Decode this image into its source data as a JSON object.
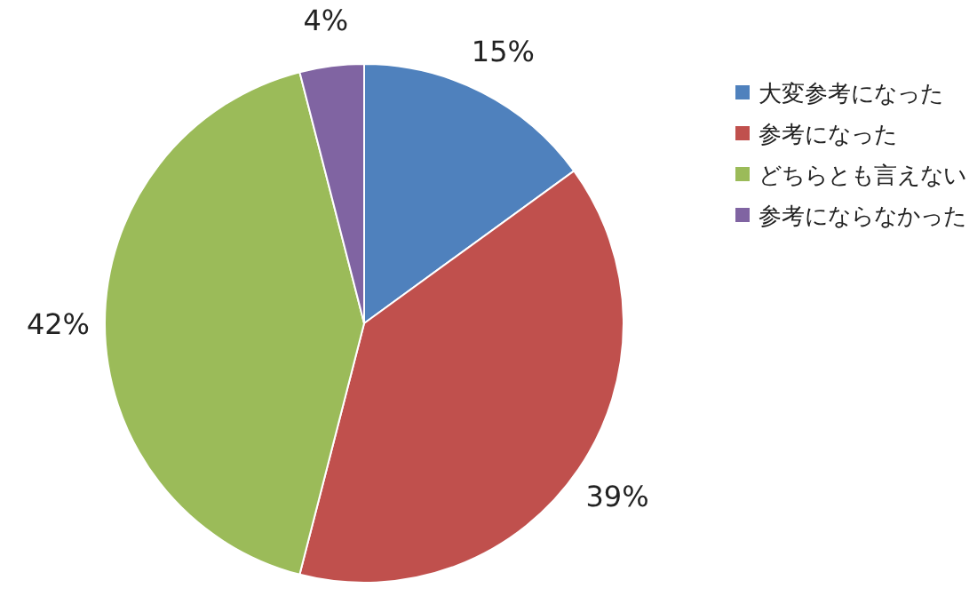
{
  "chart_data": {
    "type": "pie",
    "categories": [
      "大変参考になった",
      "参考になった",
      "どちらとも言えない",
      "参考にならなかった"
    ],
    "values": [
      15,
      39,
      42,
      4
    ],
    "colors": [
      "#4f81bd",
      "#c0504d",
      "#9bbb59",
      "#8064a2"
    ],
    "value_labels": [
      "15%",
      "39%",
      "42%",
      "4%"
    ],
    "legend": "right"
  }
}
